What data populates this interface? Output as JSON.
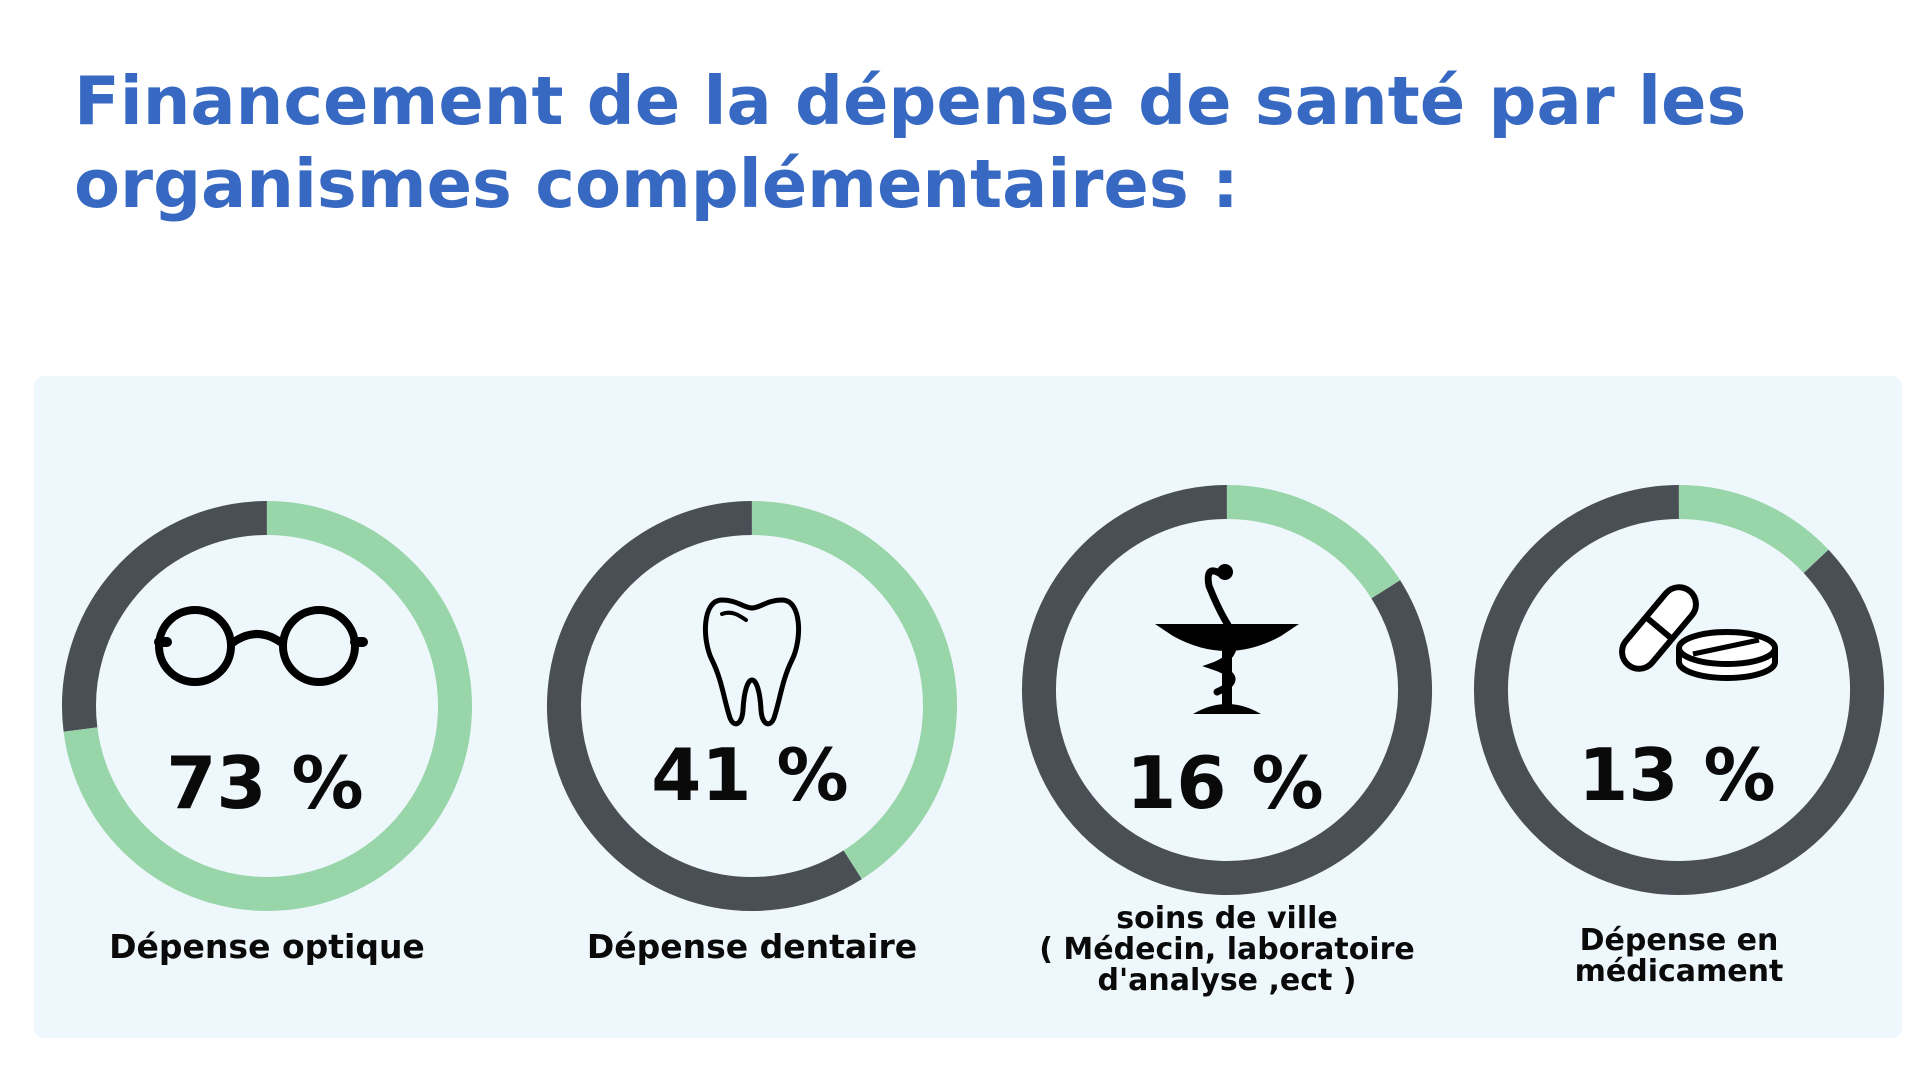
{
  "title": {
    "line1": "Financement de la dépense de santé par les",
    "line2": "organismes complémentaires :"
  },
  "chart_data": {
    "type": "pie",
    "subtype": "donut",
    "value_colour": "#98d5a8",
    "remainder_colour": "#4a4f56",
    "items": [
      {
        "label": [
          "Dépense optique"
        ],
        "value": 73,
        "display": "73 %",
        "icon": "glasses-icon"
      },
      {
        "label": [
          "Dépense dentaire"
        ],
        "value": 41,
        "display": "41 %",
        "icon": "tooth-icon"
      },
      {
        "label": [
          "soins de ville",
          "( Médecin, laboratoire",
          "d'analyse ,ect )"
        ],
        "value": 16,
        "display": "16 %",
        "icon": "caduceus-icon"
      },
      {
        "label": [
          "Dépense en",
          "médicament"
        ],
        "value": 13,
        "display": "13 %",
        "icon": "pills-icon"
      }
    ]
  },
  "colors": {
    "title": "#3769c2",
    "panel": "#eef7fc"
  }
}
